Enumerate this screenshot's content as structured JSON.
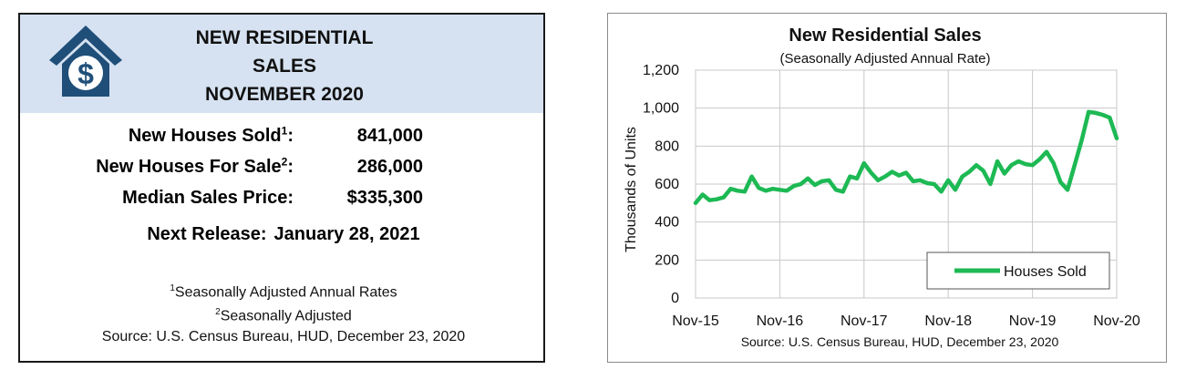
{
  "left_panel": {
    "title_lines": [
      "NEW RESIDENTIAL",
      "SALES",
      "NOVEMBER 2020"
    ],
    "logo_icon": "house-dollar-icon",
    "header_color": "#d6e2f1",
    "logo_color": "#1f4e79",
    "stats": [
      {
        "label": "New Houses Sold",
        "sup": "1",
        "suffix": ":",
        "value": "841,000"
      },
      {
        "label": "New Houses For Sale",
        "sup": "2",
        "suffix": ":",
        "value": "286,000"
      },
      {
        "label": "Median Sales Price:",
        "sup": "",
        "suffix": "",
        "value": "$335,300"
      }
    ],
    "next_release_label": "Next Release:",
    "next_release_value": "January 28, 2021",
    "footnote1_sup": "1",
    "footnote1_text": "Seasonally Adjusted Annual Rates",
    "footnote2_sup": "2",
    "footnote2_text": "Seasonally Adjusted",
    "source": "Source:  U.S. Census Bureau, HUD, December 23, 2020"
  },
  "chart_data": {
    "type": "line",
    "title": "New Residential Sales",
    "subtitle": "(Seasonally Adjusted Annual Rate)",
    "xlabel": "",
    "ylabel": "Thousands of Units",
    "ylim": [
      0,
      1200
    ],
    "yticks": [
      0,
      200,
      400,
      600,
      800,
      1000,
      1200
    ],
    "ytick_labels": [
      "0",
      "200",
      "400",
      "600",
      "800",
      "1,000",
      "1,200"
    ],
    "xtick_labels": [
      "Nov-15",
      "Nov-16",
      "Nov-17",
      "Nov-18",
      "Nov-19",
      "Nov-20"
    ],
    "xticks_index": [
      0,
      12,
      24,
      36,
      48,
      60
    ],
    "grid": true,
    "legend_position": "bottom-right",
    "series": [
      {
        "name": "Houses Sold",
        "color": "#1db954",
        "values": [
          500,
          545,
          515,
          520,
          530,
          575,
          565,
          560,
          640,
          580,
          565,
          575,
          570,
          565,
          590,
          600,
          630,
          595,
          615,
          620,
          570,
          560,
          640,
          630,
          710,
          660,
          620,
          640,
          665,
          645,
          660,
          615,
          620,
          605,
          600,
          560,
          620,
          570,
          640,
          665,
          700,
          670,
          600,
          720,
          655,
          700,
          720,
          705,
          700,
          730,
          770,
          710,
          610,
          570,
          700,
          830,
          980,
          975,
          965,
          950,
          841
        ]
      }
    ],
    "source": "Source:  U.S. Census Bureau, HUD, December 23, 2020"
  }
}
